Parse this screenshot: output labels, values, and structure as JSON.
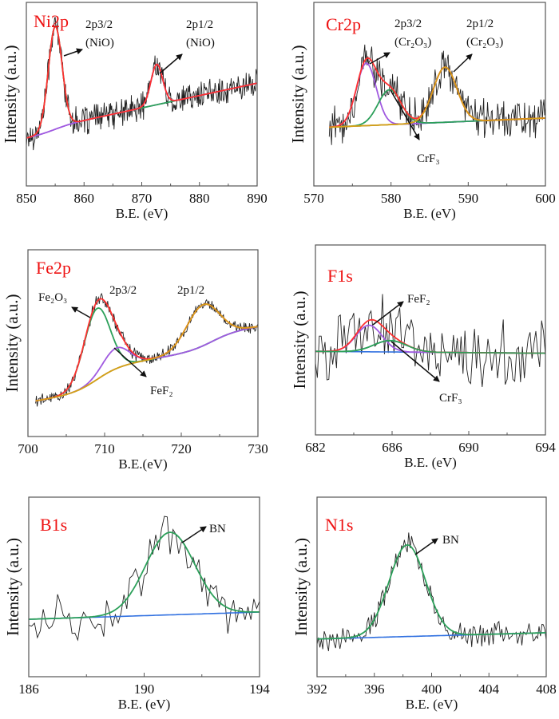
{
  "chart_data": [
    {
      "type": "line",
      "title": "Ni2p",
      "xlabel": "B.E. (eV)",
      "ylabel": "Intensity (a.u.)",
      "xlim": [
        850,
        890
      ],
      "ylim": [
        0,
        100
      ],
      "xticks": [
        "850",
        "860",
        "870",
        "880",
        "890"
      ],
      "minor_ticks": true,
      "data_range": [
        850,
        890
      ],
      "noise": 9,
      "background": {
        "color": "#a05ae0",
        "start": 26,
        "end": 53,
        "steps": [
          {
            "center": 855,
            "height": 3
          }
        ]
      },
      "envelope_color": "#ff3030",
      "components": [
        {
          "center": 855,
          "height": 56,
          "fwhm": 2.8,
          "color": "#2ca05a"
        },
        {
          "center": 872.6,
          "height": 22,
          "fwhm": 2.4,
          "color": "#a05ae0"
        }
      ],
      "annotations": [
        {
          "lines": [
            "2p3/2",
            "(NiO)"
          ]
        },
        {
          "lines": [
            "2p1/2",
            "(NiO)"
          ]
        }
      ]
    },
    {
      "type": "line",
      "title": "Cr2p",
      "xlabel": "B.E. (eV)",
      "ylabel": "Intensity (a.u.)",
      "xlim": [
        570,
        600
      ],
      "ylim": [
        0,
        100
      ],
      "xticks": [
        "570",
        "580",
        "590",
        "600"
      ],
      "minor_ticks": true,
      "data_range": [
        572,
        600
      ],
      "noise": 13,
      "background": {
        "color": "#3070e0",
        "start": 32,
        "end": 37,
        "steps": []
      },
      "envelope_color": "#ff3030",
      "components": [
        {
          "center": 576.8,
          "height": 34,
          "fwhm": 3.0,
          "color": "#a05ae0"
        },
        {
          "center": 579.8,
          "height": 19,
          "fwhm": 3.5,
          "color": "#2ca05a"
        },
        {
          "center": 587.0,
          "height": 30,
          "fwhm": 3.6,
          "color": "#d4a017"
        }
      ],
      "annotations": [
        {
          "lines": [
            "2p3/2",
            "(Cr₂O₃)"
          ]
        },
        {
          "lines": [
            "2p1/2",
            "(Cr₂O₃)"
          ]
        },
        {
          "lines": [
            "CrF₃"
          ]
        }
      ]
    },
    {
      "type": "line",
      "title": "Fe2p",
      "xlabel": "B.E.(eV)",
      "ylabel": "Intensity (a.u.)",
      "xlim": [
        700,
        730
      ],
      "ylim": [
        0,
        100
      ],
      "xticks": [
        "700",
        "710",
        "720",
        "730"
      ],
      "minor_ticks": true,
      "data_range": [
        701,
        730
      ],
      "noise": 4,
      "background": {
        "color": "#3070e0",
        "start": 19,
        "end": 39,
        "steps": [
          {
            "center": 709,
            "height": 12
          },
          {
            "center": 724,
            "height": 8
          }
        ]
      },
      "envelope_color": "#ff3030",
      "components": [
        {
          "center": 709,
          "height": 38,
          "fwhm": 4.0,
          "color": "#2ca05a"
        },
        {
          "center": 711.5,
          "height": 11,
          "fwhm": 4.0,
          "color": "#a05ae0"
        },
        {
          "center": 722.8,
          "height": 22,
          "fwhm": 5.0,
          "color": "#d4a017"
        }
      ],
      "annotations": [
        {
          "lines": [
            "Fe₂O₃"
          ]
        },
        {
          "lines": [
            "2p3/2"
          ]
        },
        {
          "lines": [
            "2p1/2"
          ]
        },
        {
          "lines": [
            "FeF₂"
          ]
        }
      ]
    },
    {
      "type": "line",
      "title": "F1s",
      "xlabel": "B.E. (eV)",
      "ylabel": "Intensity (a.u.)",
      "xlim": [
        682,
        694
      ],
      "ylim": [
        0,
        100
      ],
      "xticks": [
        "682",
        "686",
        "690",
        "694"
      ],
      "minor_ticks": true,
      "data_range": [
        682,
        694
      ],
      "noise": 22,
      "background": {
        "color": "#3070e0",
        "start": 44,
        "end": 43,
        "steps": []
      },
      "envelope_color": "#ff3030",
      "components": [
        {
          "center": 684.8,
          "height": 14,
          "fwhm": 1.6,
          "color": "#a05ae0"
        },
        {
          "center": 685.9,
          "height": 6,
          "fwhm": 2.0,
          "color": "#2ca05a"
        }
      ],
      "annotations": [
        {
          "lines": [
            "FeF₂"
          ]
        },
        {
          "lines": [
            "CrF₃"
          ]
        }
      ]
    },
    {
      "type": "line",
      "title": "B1s",
      "xlabel": "B.E. (eV)",
      "ylabel": "Intensity (a.u.)",
      "xlim": [
        186,
        194
      ],
      "ylim": [
        0,
        100
      ],
      "xticks": [
        "186",
        "190",
        "194"
      ],
      "minor_ticks": true,
      "data_range": [
        186,
        194
      ],
      "noise": 15,
      "background": {
        "color": "#3070e0",
        "start": 32,
        "end": 36,
        "steps": []
      },
      "envelope_color": null,
      "components": [
        {
          "center": 190.9,
          "height": 46,
          "fwhm": 2.0,
          "color": "#2ca05a"
        }
      ],
      "annotations": [
        {
          "lines": [
            "BN"
          ]
        }
      ]
    },
    {
      "type": "line",
      "title": "N1s",
      "xlabel": "B.E. (eV)",
      "ylabel": "Intensity (a.u.)",
      "xlim": [
        392,
        408
      ],
      "ylim": [
        0,
        100
      ],
      "xticks": [
        "392",
        "396",
        "400",
        "404",
        "408"
      ],
      "minor_ticks": true,
      "data_range": [
        392,
        408
      ],
      "noise": 8,
      "background": {
        "color": "#3070e0",
        "start": 21,
        "end": 24.5,
        "steps": []
      },
      "envelope_color": null,
      "components": [
        {
          "center": 398.3,
          "height": 51,
          "fwhm": 3.0,
          "color": "#2ca05a"
        }
      ],
      "annotations": [
        {
          "lines": [
            "BN"
          ]
        }
      ]
    }
  ]
}
